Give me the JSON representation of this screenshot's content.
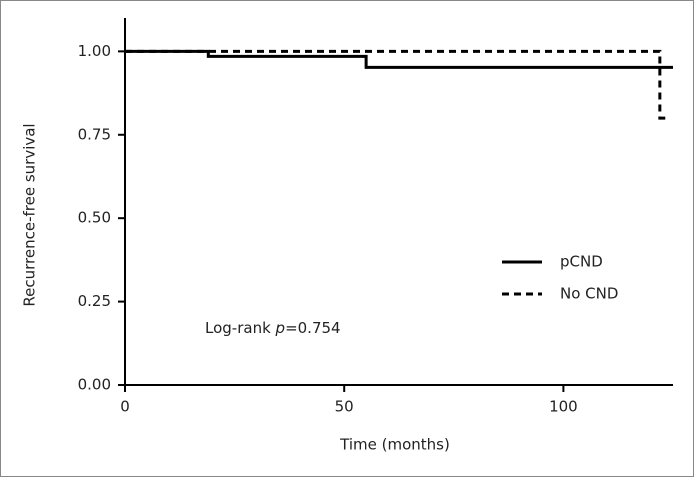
{
  "chart_data": {
    "type": "step",
    "y_label": "Recurrence-free survival",
    "x_label": "Time (months)",
    "annotation": {
      "prefix": "Log-rank ",
      "italic": "p",
      "suffix": "=0.754"
    },
    "legend": "right",
    "series": [
      {
        "name": "pCND",
        "color": "#000000",
        "linestyle": "solid",
        "x": [
          0,
          19,
          55,
          125
        ],
        "values": [
          1,
          0.985,
          0.952,
          0.952
        ]
      },
      {
        "name": "No CND",
        "color": "#000000",
        "linestyle": "dashed",
        "x": [
          0,
          122,
          124
        ],
        "values": [
          1,
          0.8,
          0.8
        ]
      }
    ],
    "xlim": [
      0,
      125
    ],
    "xticks": [
      0,
      50,
      100
    ],
    "ylim": [
      0,
      1.1
    ],
    "yticks": [
      {
        "value": 0,
        "label": "0.00"
      },
      {
        "value": 0.25,
        "label": "0.25"
      },
      {
        "value": 0.5,
        "label": "0.50"
      },
      {
        "value": 0.75,
        "label": "0.75"
      },
      {
        "value": 1,
        "label": "1.00"
      }
    ]
  }
}
